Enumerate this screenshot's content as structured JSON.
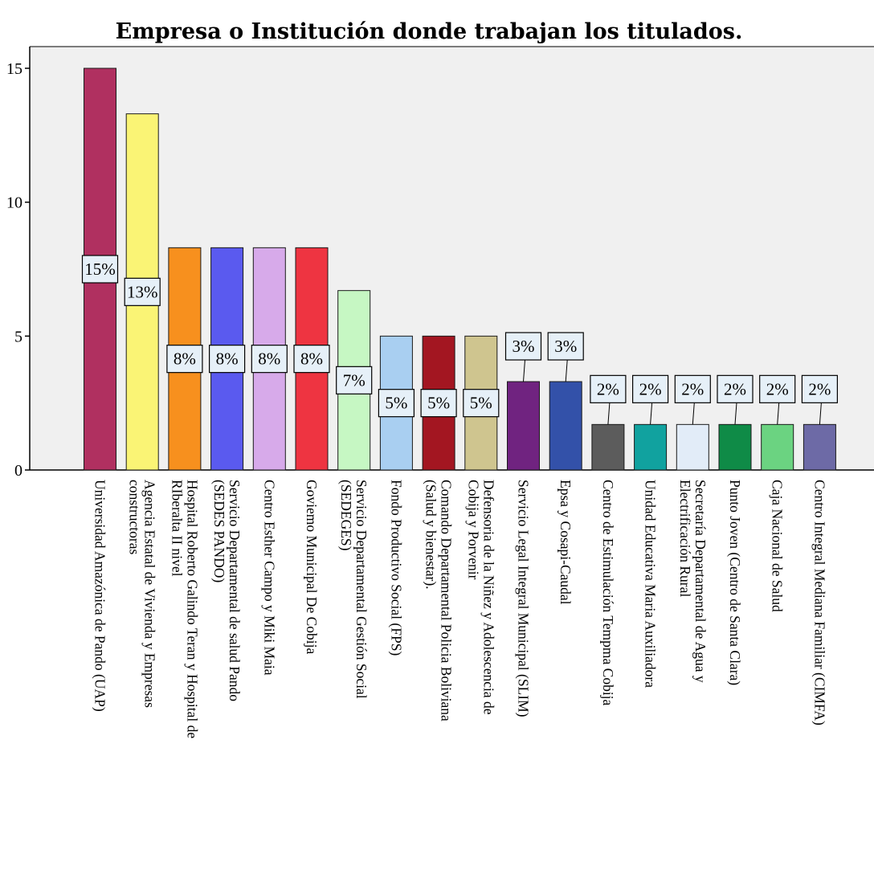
{
  "chart_data": {
    "type": "bar",
    "title": "Empresa o Institución donde trabajan los titulados.",
    "xlabel": "",
    "ylabel": "",
    "ylim": [
      0,
      16
    ],
    "yticks": [
      0,
      5,
      10,
      15
    ],
    "ytick_labels": [
      "0",
      "5",
      "10",
      "15"
    ],
    "grid": false,
    "legend": "none",
    "categories": [
      [
        "Universidad Amazónica de Pando (UAP)"
      ],
      [
        "Agencia Estatal de Vivienda y Empresas",
        "constructoras"
      ],
      [
        "Hospital Roberto Galindo Teran y Hospital de",
        "RIberalta II nivel"
      ],
      [
        "Servicio Departamental de salud Pando",
        "(SEDES PANDO)"
      ],
      [
        "Centro Esther Campo y Miki Maia"
      ],
      [
        "Goviemo Municipal De Cobija"
      ],
      [
        "Servicio Departamental Gestión Social",
        "(SEDEGES)"
      ],
      [
        "Fondo Productivo Social (FPS)"
      ],
      [
        "Comando Departamental Policia Boliviana",
        "(Salud y bienestar)."
      ],
      [
        "Defensoria de la Niñez y Adolescencia de",
        "Cobija y Porvenir"
      ],
      [
        "Servicio Legal Integral Municipal (SLIM)"
      ],
      [
        "Epsa y Cosapi-Caudal"
      ],
      [
        "Centro de Estimulación Tempma Cobija"
      ],
      [
        "Unidad Educativa Maria Auxiliadora"
      ],
      [
        "Secretaría Departamental de Agua y",
        "Electrificación  Rural"
      ],
      [
        "Punto Joven (Centro de Santa Clara)"
      ],
      [
        "Caja Nacional de Salud"
      ],
      [
        "Centro Integral Mediana Familiar (CIMFA)"
      ]
    ],
    "values": [
      15.0,
      13.3,
      8.3,
      8.3,
      8.3,
      8.3,
      6.7,
      5.0,
      5.0,
      5.0,
      3.3,
      3.3,
      1.7,
      1.7,
      1.7,
      1.7,
      1.7,
      1.7
    ],
    "data_labels": [
      "15%",
      "13%",
      "8%",
      "8%",
      "8%",
      "8%",
      "7%",
      "5%",
      "5%",
      "5%",
      "3%",
      "3%",
      "2%",
      "2%",
      "2%",
      "2%",
      "2%",
      "2%"
    ],
    "colors": [
      "#b03060",
      "#faf475",
      "#f7901e",
      "#5a5aef",
      "#d7aaea",
      "#ee3441",
      "#c6f7c3",
      "#a9cff1",
      "#a31621",
      "#cfc58f",
      "#702380",
      "#3351a9",
      "#5c5c5c",
      "#11a29f",
      "#e2ecf8",
      "#0f8b47",
      "#6bd381",
      "#6d6aa6"
    ],
    "plot_background": "#f0f0f0",
    "label_box_fill": "#e6f0f8",
    "bar_stroke": "#1a1a1a"
  }
}
